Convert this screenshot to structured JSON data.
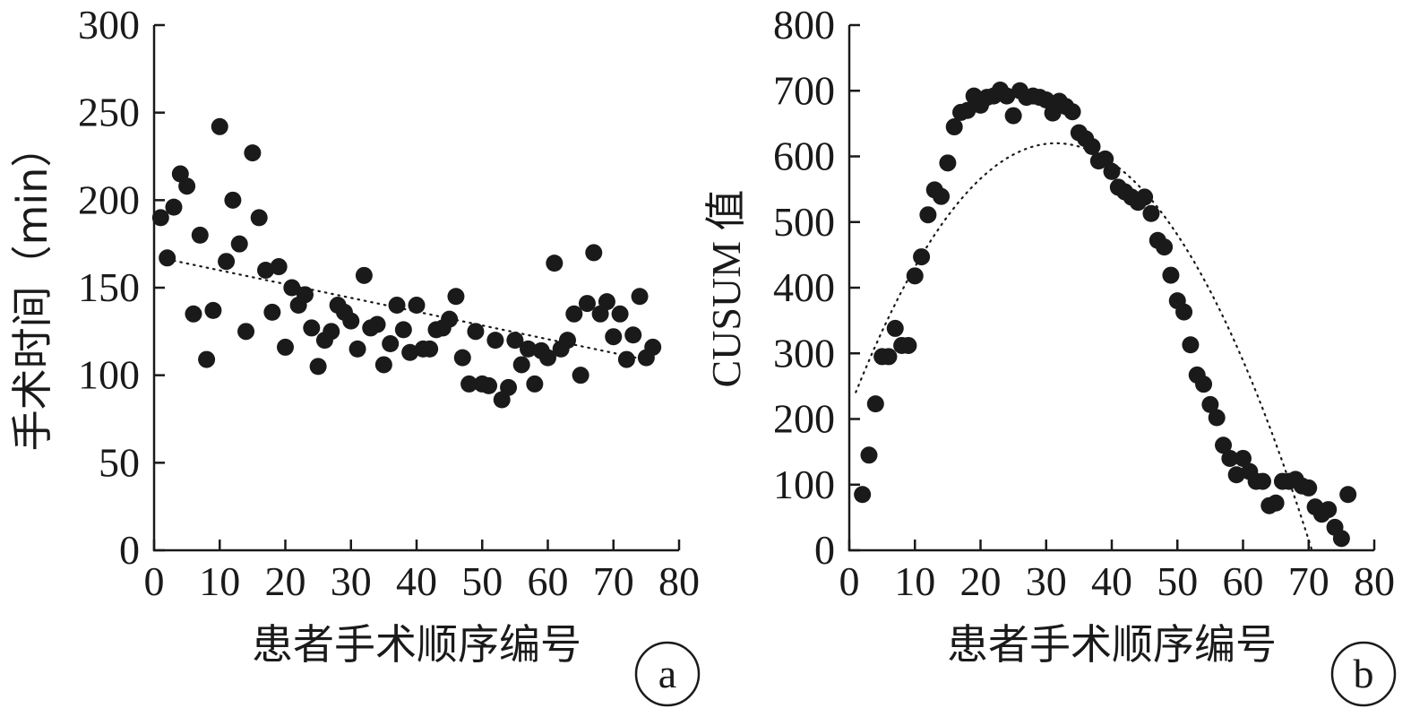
{
  "chart_data": [
    {
      "type": "scatter",
      "panel_label": "a",
      "title": "",
      "xlabel": "患者手术顺序编号",
      "ylabel": "手术时间（min）",
      "xlim": [
        0,
        80
      ],
      "ylim": [
        0,
        300
      ],
      "xticks": [
        0,
        10,
        20,
        30,
        40,
        50,
        60,
        70,
        80
      ],
      "yticks": [
        0,
        50,
        100,
        150,
        200,
        250,
        300
      ],
      "grid": false,
      "trendline": {
        "type": "linear",
        "x": [
          1,
          76
        ],
        "y": [
          167,
          108
        ]
      },
      "x": [
        1,
        2,
        3,
        4,
        5,
        6,
        7,
        8,
        9,
        10,
        11,
        12,
        13,
        14,
        15,
        16,
        17,
        18,
        19,
        20,
        21,
        22,
        23,
        24,
        25,
        26,
        27,
        28,
        29,
        30,
        31,
        32,
        33,
        34,
        35,
        36,
        37,
        38,
        39,
        40,
        41,
        42,
        43,
        44,
        45,
        46,
        47,
        48,
        49,
        50,
        51,
        52,
        53,
        54,
        55,
        56,
        57,
        58,
        59,
        60,
        61,
        62,
        63,
        64,
        65,
        66,
        67,
        68,
        69,
        70,
        71,
        72,
        73,
        74,
        75,
        76
      ],
      "y": [
        190,
        167,
        196,
        215,
        208,
        135,
        180,
        109,
        137,
        242,
        165,
        200,
        175,
        125,
        227,
        190,
        160,
        136,
        162,
        116,
        150,
        140,
        146,
        127,
        105,
        120,
        125,
        140,
        136,
        131,
        115,
        157,
        127,
        129,
        106,
        118,
        140,
        126,
        113,
        140,
        115,
        115,
        126,
        127,
        132,
        145,
        110,
        95,
        125,
        95,
        94,
        120,
        86,
        93,
        120,
        106,
        115,
        95,
        114,
        110,
        164,
        115,
        120,
        135,
        100,
        141,
        170,
        135,
        142,
        122,
        135,
        109,
        123,
        145,
        110,
        116
      ]
    },
    {
      "type": "scatter",
      "panel_label": "b",
      "title": "",
      "xlabel": "患者手术顺序编号",
      "ylabel": "CUSUM 值",
      "xlim": [
        0,
        80
      ],
      "ylim": [
        0,
        800
      ],
      "xticks": [
        0,
        10,
        20,
        30,
        40,
        50,
        60,
        70,
        80
      ],
      "yticks": [
        0,
        100,
        200,
        300,
        400,
        500,
        600,
        700,
        800
      ],
      "grid": false,
      "trendline": {
        "type": "polynomial",
        "vertex_x": 31.5,
        "vertex_y": 620,
        "zero_x": 70.5
      },
      "x": [
        2,
        3,
        4,
        5,
        6,
        7,
        8,
        9,
        10,
        11,
        12,
        13,
        14,
        15,
        16,
        17,
        18,
        19,
        20,
        21,
        22,
        23,
        24,
        25,
        26,
        27,
        28,
        29,
        30,
        31,
        32,
        33,
        34,
        35,
        36,
        37,
        38,
        39,
        40,
        41,
        42,
        43,
        44,
        45,
        46,
        47,
        48,
        49,
        50,
        51,
        52,
        53,
        54,
        55,
        56,
        57,
        58,
        59,
        60,
        61,
        62,
        63,
        64,
        65,
        66,
        67,
        68,
        69,
        70,
        71,
        72,
        73,
        74,
        75,
        76
      ],
      "y": [
        85,
        145,
        223,
        295,
        295,
        338,
        312,
        312,
        418,
        447,
        511,
        549,
        539,
        590,
        645,
        667,
        670,
        692,
        678,
        690,
        692,
        701,
        692,
        662,
        700,
        690,
        692,
        690,
        686,
        666,
        684,
        676,
        668,
        636,
        627,
        615,
        593,
        596,
        577,
        553,
        546,
        538,
        530,
        538,
        513,
        472,
        462,
        419,
        380,
        363,
        313,
        267,
        253,
        222,
        202,
        160,
        140,
        115,
        140,
        120,
        105,
        105,
        68,
        72,
        105,
        105,
        108,
        98,
        95,
        66,
        55,
        62,
        35,
        18,
        85
      ]
    }
  ]
}
